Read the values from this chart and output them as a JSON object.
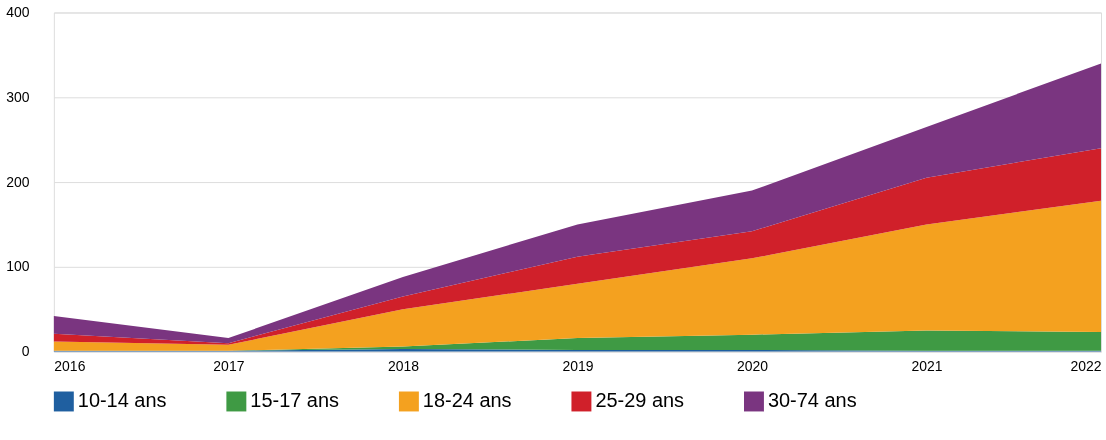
{
  "chart_data": {
    "type": "area",
    "stacked": true,
    "x": [
      2016,
      2017,
      2018,
      2019,
      2020,
      2021,
      2022
    ],
    "xlim": [
      2016,
      2022
    ],
    "xticks": [
      2016,
      2017,
      2018,
      2019,
      2020,
      2021,
      2022
    ],
    "ylim": [
      0,
      400
    ],
    "yticks": [
      0,
      100,
      200,
      300,
      400
    ],
    "grid": "y",
    "legend": "bottom",
    "series": [
      {
        "name": "10-14 ans",
        "color": "#1f5fa0",
        "values": [
          1,
          1,
          3,
          2,
          2,
          1,
          1
        ]
      },
      {
        "name": "15-17 ans",
        "color": "#3f9a44",
        "values": [
          0,
          0,
          3,
          14,
          18,
          24,
          22
        ]
      },
      {
        "name": "18-24 ans",
        "color": "#f4a11f",
        "values": [
          11,
          7,
          44,
          64,
          90,
          125,
          155
        ]
      },
      {
        "name": "25-29 ans",
        "color": "#d0202a",
        "values": [
          9,
          2,
          15,
          32,
          32,
          55,
          62
        ]
      },
      {
        "name": "30-74 ans",
        "color": "#7a3580",
        "values": [
          21,
          6,
          23,
          38,
          48,
          60,
          100
        ]
      }
    ]
  }
}
